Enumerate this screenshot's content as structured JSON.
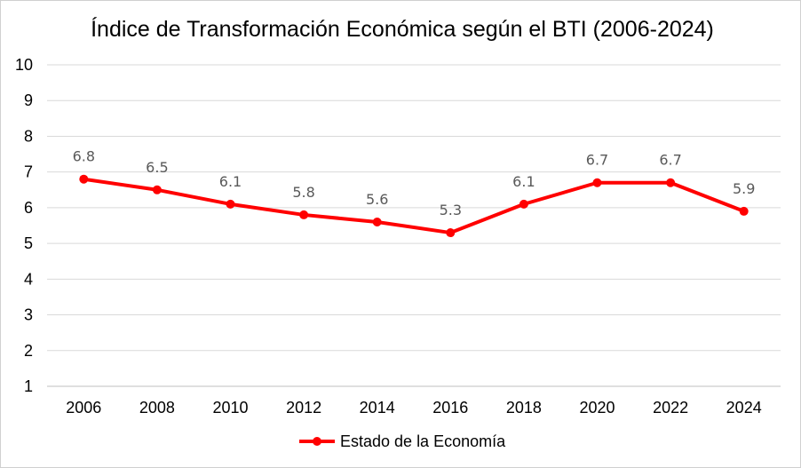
{
  "chart_data": {
    "type": "line",
    "title": "Índice de Transformación Económica según el BTI (2006-2024)",
    "xlabel": "",
    "ylabel": "",
    "categories": [
      "2006",
      "2008",
      "2010",
      "2012",
      "2014",
      "2016",
      "2018",
      "2020",
      "2022",
      "2024"
    ],
    "series": [
      {
        "name": "Estado de la Economía",
        "values": [
          6.8,
          6.5,
          6.1,
          5.8,
          5.6,
          5.3,
          6.1,
          6.7,
          6.7,
          5.9
        ],
        "labels": [
          "6.8",
          "6.5",
          "6.1",
          "5.8",
          "5.6",
          "5.3",
          "6.1",
          "6.7",
          "6.7",
          "5.9"
        ],
        "color": "#ff0000"
      }
    ],
    "ylim": [
      1,
      10
    ],
    "yticks": [
      "1",
      "2",
      "3",
      "4",
      "5",
      "6",
      "7",
      "8",
      "9",
      "10"
    ],
    "grid": true,
    "legend_position": "bottom",
    "colors": {
      "grid": "#d9d9d9",
      "axis": "#bfbfbf",
      "line": "#ff0000",
      "data_label": "#595959"
    }
  }
}
